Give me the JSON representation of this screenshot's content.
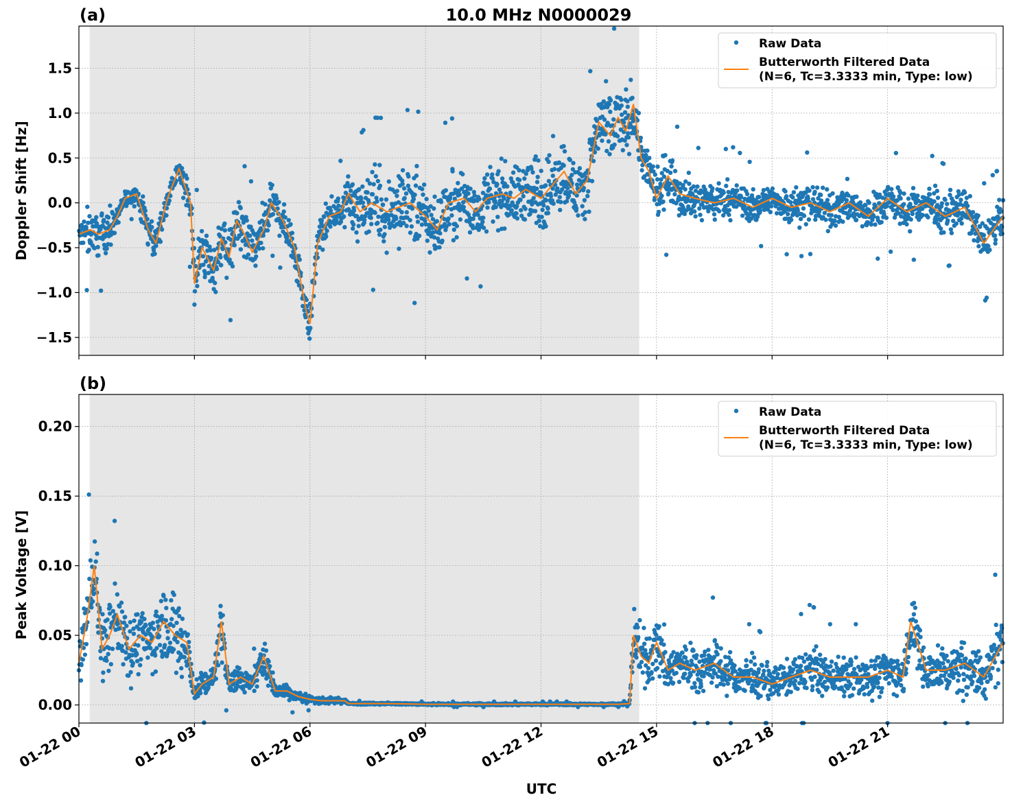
{
  "figure": {
    "title": "10.0 MHz N0000029",
    "xlabel": "UTC",
    "x_tick_labels": [
      "01-22 00",
      "01-22 03",
      "01-22 06",
      "01-22 09",
      "01-22 12",
      "01-22 15",
      "01-22 18",
      "01-22 21"
    ],
    "colors": {
      "raw": "#1f77b4",
      "filtered": "#ff7f0e",
      "shade": "#e6e6e6",
      "grid": "#b0b0b0"
    }
  },
  "chart_data": [
    {
      "type": "scatter",
      "panel_label": "(a)",
      "ylabel": "Doppler Shift [Hz]",
      "xlim_hours": [
        0,
        24
      ],
      "ylim": [
        -1.7,
        1.97
      ],
      "y_ticks": [
        -1.5,
        -1.0,
        -0.5,
        0.0,
        0.5,
        1.0,
        1.5
      ],
      "y_tick_labels": [
        "−1.5",
        "−1.0",
        "−0.5",
        "0.0",
        "0.5",
        "1.0",
        "1.5"
      ],
      "grid": true,
      "night_shading_hours": [
        0.28,
        14.55
      ],
      "legend": {
        "location": "upper right",
        "entries": [
          "Raw Data",
          "Butterworth Filtered Data",
          "(N=6, Tc=3.3333 min, Type: low)"
        ]
      },
      "series": [
        {
          "name": "Butterworth Filtered Data",
          "kind": "line",
          "x_hours": [
            0,
            0.3,
            0.5,
            0.8,
            1.0,
            1.2,
            1.5,
            1.8,
            2.0,
            2.3,
            2.6,
            2.9,
            3.0,
            3.2,
            3.5,
            3.7,
            3.9,
            4.1,
            4.3,
            4.5,
            4.8,
            5.0,
            5.3,
            5.6,
            5.9,
            6.0,
            6.2,
            6.5,
            6.8,
            7.0,
            7.3,
            7.6,
            8.0,
            8.3,
            8.6,
            9.0,
            9.3,
            9.6,
            10.0,
            10.3,
            10.6,
            11.0,
            11.3,
            11.6,
            12.0,
            12.3,
            12.6,
            12.9,
            13.2,
            13.5,
            13.8,
            14.0,
            14.2,
            14.4,
            14.6,
            14.8,
            15.0,
            15.3,
            15.6,
            16.0,
            16.5,
            17.0,
            17.5,
            18.0,
            18.5,
            19.0,
            19.5,
            20.0,
            20.5,
            21.0,
            21.5,
            22.0,
            22.5,
            23.0,
            23.5,
            24.0
          ],
          "y": [
            -0.35,
            -0.3,
            -0.35,
            -0.3,
            -0.15,
            0.05,
            0.1,
            -0.3,
            -0.45,
            0.05,
            0.38,
            0.0,
            -0.9,
            -0.5,
            -0.75,
            -0.4,
            -0.6,
            -0.2,
            -0.35,
            -0.55,
            -0.3,
            0.0,
            -0.2,
            -0.5,
            -1.2,
            -1.35,
            -0.45,
            -0.15,
            -0.1,
            0.1,
            -0.1,
            0.0,
            -0.1,
            -0.05,
            0.0,
            -0.15,
            -0.3,
            0.0,
            0.05,
            -0.1,
            0.05,
            0.1,
            0.05,
            0.15,
            0.05,
            0.2,
            0.35,
            0.1,
            0.25,
            0.9,
            0.75,
            0.95,
            0.8,
            1.1,
            0.5,
            0.35,
            0.05,
            0.3,
            0.1,
            0.05,
            0.0,
            0.05,
            -0.05,
            0.05,
            -0.05,
            0.0,
            -0.1,
            0.0,
            -0.15,
            0.05,
            -0.1,
            0.0,
            -0.15,
            -0.05,
            -0.45,
            -0.15
          ]
        },
        {
          "name": "Raw Data",
          "kind": "scatter",
          "x_hours": [
            0,
            0.3,
            0.5,
            0.8,
            1.0,
            1.2,
            1.5,
            1.8,
            2.0,
            2.3,
            2.6,
            2.9,
            3.0,
            3.2,
            3.5,
            3.7,
            3.9,
            4.1,
            4.3,
            4.5,
            4.8,
            5.0,
            5.3,
            5.6,
            5.9,
            6.0,
            6.2,
            6.5,
            6.8,
            7.0,
            7.3,
            7.6,
            8.0,
            8.3,
            8.6,
            9.0,
            9.3,
            9.6,
            10.0,
            10.3,
            10.6,
            11.0,
            11.3,
            11.6,
            12.0,
            12.3,
            12.6,
            12.9,
            13.2,
            13.5,
            13.8,
            14.0,
            14.2,
            14.4,
            14.6,
            14.8,
            15.0,
            15.3,
            15.6,
            16.0,
            16.5,
            17.0,
            17.5,
            18.0,
            18.5,
            19.0,
            19.5,
            20.0,
            20.5,
            21.0,
            21.5,
            22.0,
            22.5,
            23.0,
            23.5,
            24.0
          ],
          "y_center": [
            -0.35,
            -0.3,
            -0.35,
            -0.3,
            -0.15,
            0.05,
            0.1,
            -0.3,
            -0.45,
            0.05,
            0.38,
            0.0,
            -0.9,
            -0.5,
            -0.75,
            -0.4,
            -0.6,
            -0.2,
            -0.35,
            -0.55,
            -0.3,
            0.0,
            -0.2,
            -0.5,
            -1.2,
            -1.35,
            -0.45,
            -0.15,
            -0.1,
            0.1,
            -0.1,
            0.0,
            -0.1,
            -0.05,
            0.0,
            -0.15,
            -0.3,
            0.0,
            0.05,
            -0.1,
            0.05,
            0.1,
            0.05,
            0.15,
            0.05,
            0.2,
            0.35,
            0.1,
            0.25,
            0.9,
            0.75,
            0.95,
            0.8,
            1.1,
            0.5,
            0.35,
            0.05,
            0.3,
            0.1,
            0.05,
            0.0,
            0.05,
            -0.05,
            0.05,
            -0.05,
            0.0,
            -0.1,
            0.0,
            -0.15,
            0.05,
            -0.1,
            0.0,
            -0.15,
            -0.05,
            -0.45,
            -0.15
          ],
          "spread": [
            0.12,
            0.45,
            0.35,
            0.3,
            0.15,
            0.12,
            0.15,
            0.3,
            0.25,
            0.15,
            0.15,
            0.4,
            0.5,
            0.45,
            0.4,
            0.45,
            0.4,
            0.45,
            0.4,
            0.4,
            0.45,
            0.3,
            0.3,
            0.35,
            0.25,
            0.3,
            0.3,
            0.25,
            0.3,
            0.4,
            0.45,
            0.5,
            0.55,
            0.55,
            0.55,
            0.6,
            0.55,
            0.5,
            0.45,
            0.45,
            0.5,
            0.5,
            0.5,
            0.55,
            0.55,
            0.6,
            0.55,
            0.5,
            0.55,
            0.55,
            0.6,
            0.55,
            0.6,
            0.45,
            0.35,
            0.35,
            0.4,
            0.45,
            0.35,
            0.3,
            0.3,
            0.3,
            0.25,
            0.25,
            0.3,
            0.3,
            0.3,
            0.3,
            0.3,
            0.3,
            0.3,
            0.3,
            0.3,
            0.3,
            0.35,
            0.3
          ]
        }
      ]
    },
    {
      "type": "scatter",
      "panel_label": "(b)",
      "ylabel": "Peak Voltage [V]",
      "xlim_hours": [
        0,
        24
      ],
      "ylim": [
        -0.013,
        0.223
      ],
      "y_ticks": [
        0.0,
        0.05,
        0.1,
        0.15,
        0.2
      ],
      "y_tick_labels": [
        "0.00",
        "0.05",
        "0.10",
        "0.15",
        "0.20"
      ],
      "grid": true,
      "night_shading_hours": [
        0.28,
        14.55
      ],
      "legend": {
        "location": "upper right",
        "entries": [
          "Raw Data",
          "Butterworth Filtered Data",
          "(N=6, Tc=3.3333 min, Type: low)"
        ]
      },
      "series": [
        {
          "name": "Butterworth Filtered Data",
          "kind": "line",
          "x_hours": [
            0,
            0.2,
            0.4,
            0.6,
            0.8,
            1.0,
            1.3,
            1.6,
            1.9,
            2.2,
            2.5,
            2.8,
            3.0,
            3.2,
            3.5,
            3.7,
            3.9,
            4.2,
            4.5,
            4.8,
            5.1,
            5.4,
            5.7,
            6.0,
            6.3,
            6.6,
            6.9,
            7.0,
            8.0,
            9.0,
            10.0,
            11.0,
            12.0,
            13.0,
            14.0,
            14.3,
            14.4,
            14.6,
            14.8,
            15.0,
            15.3,
            15.6,
            16.0,
            16.5,
            17.0,
            17.5,
            18.0,
            18.5,
            19.0,
            19.5,
            20.0,
            20.5,
            21.0,
            21.4,
            21.6,
            22.0,
            22.5,
            23.0,
            23.5,
            24.0
          ],
          "y": [
            0.03,
            0.06,
            0.1,
            0.04,
            0.05,
            0.065,
            0.04,
            0.05,
            0.045,
            0.06,
            0.05,
            0.045,
            0.008,
            0.015,
            0.02,
            0.06,
            0.015,
            0.02,
            0.015,
            0.035,
            0.01,
            0.01,
            0.006,
            0.004,
            0.003,
            0.003,
            0.003,
            0.001,
            0.001,
            0.0005,
            0.0005,
            0.0005,
            0.0005,
            0.0005,
            0.0005,
            0.001,
            0.05,
            0.035,
            0.03,
            0.045,
            0.025,
            0.03,
            0.025,
            0.03,
            0.02,
            0.02,
            0.015,
            0.02,
            0.025,
            0.02,
            0.02,
            0.02,
            0.025,
            0.02,
            0.06,
            0.025,
            0.025,
            0.03,
            0.02,
            0.045
          ]
        },
        {
          "name": "Raw Data",
          "kind": "scatter",
          "x_hours": [
            0,
            0.2,
            0.4,
            0.6,
            0.8,
            1.0,
            1.3,
            1.6,
            1.9,
            2.2,
            2.5,
            2.8,
            3.0,
            3.2,
            3.5,
            3.7,
            3.9,
            4.2,
            4.5,
            4.8,
            5.1,
            5.4,
            5.7,
            6.0,
            6.3,
            6.6,
            6.9,
            7.0,
            8.0,
            9.0,
            10.0,
            11.0,
            12.0,
            13.0,
            14.0,
            14.3,
            14.4,
            14.6,
            14.8,
            15.0,
            15.3,
            15.6,
            16.0,
            16.5,
            17.0,
            17.5,
            18.0,
            18.5,
            19.0,
            19.5,
            20.0,
            20.5,
            21.0,
            21.4,
            21.6,
            22.0,
            22.5,
            23.0,
            23.5,
            24.0
          ],
          "y_center": [
            0.03,
            0.06,
            0.1,
            0.04,
            0.05,
            0.065,
            0.04,
            0.05,
            0.045,
            0.06,
            0.05,
            0.045,
            0.008,
            0.015,
            0.02,
            0.06,
            0.015,
            0.02,
            0.015,
            0.035,
            0.01,
            0.01,
            0.006,
            0.004,
            0.003,
            0.003,
            0.003,
            0.001,
            0.001,
            0.0005,
            0.0005,
            0.0005,
            0.0005,
            0.0005,
            0.0005,
            0.001,
            0.05,
            0.035,
            0.03,
            0.045,
            0.025,
            0.03,
            0.025,
            0.03,
            0.02,
            0.02,
            0.015,
            0.02,
            0.025,
            0.02,
            0.02,
            0.02,
            0.025,
            0.02,
            0.06,
            0.025,
            0.025,
            0.03,
            0.02,
            0.045
          ],
          "spread": [
            0.025,
            0.04,
            0.045,
            0.035,
            0.035,
            0.04,
            0.035,
            0.035,
            0.035,
            0.04,
            0.04,
            0.035,
            0.01,
            0.015,
            0.015,
            0.03,
            0.012,
            0.015,
            0.01,
            0.02,
            0.008,
            0.008,
            0.006,
            0.004,
            0.003,
            0.003,
            0.003,
            0.001,
            0.001,
            0.001,
            0.001,
            0.001,
            0.001,
            0.001,
            0.001,
            0.001,
            0.03,
            0.03,
            0.025,
            0.035,
            0.025,
            0.025,
            0.025,
            0.025,
            0.02,
            0.02,
            0.015,
            0.02,
            0.025,
            0.02,
            0.02,
            0.02,
            0.025,
            0.02,
            0.03,
            0.025,
            0.025,
            0.03,
            0.025,
            0.035
          ]
        }
      ]
    }
  ]
}
